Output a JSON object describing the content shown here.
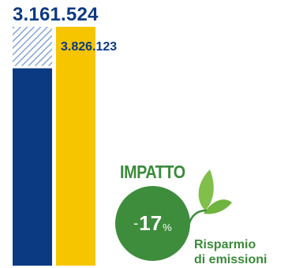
{
  "chart_data": {
    "type": "bar",
    "series": [
      {
        "values": [
          3161524
        ],
        "label": "3.161.524",
        "color": "#0b3a82"
      },
      {
        "values": [
          3826123
        ],
        "label": "3.826.123",
        "color": "#f6c500"
      }
    ],
    "ylim": [
      0,
      3826123
    ],
    "grid": false,
    "legend": "none"
  },
  "impact": {
    "title": "IMPATTO",
    "sign": "-",
    "value": "17",
    "unit": "%",
    "caption_line1": "Risparmio",
    "caption_line2": "di emissioni"
  },
  "colors": {
    "navy": "#0b3a82",
    "yellow": "#f6c500",
    "green": "#3e8d3d",
    "light_green": "#7fbf4a"
  }
}
